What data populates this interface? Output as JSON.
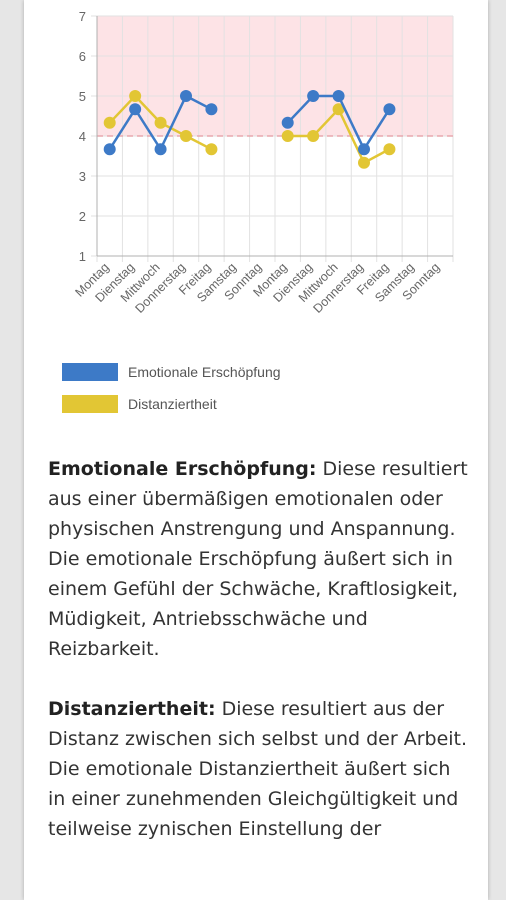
{
  "colors": {
    "series1": "#3d7ac7",
    "series2": "#e2c634",
    "band": "#fde3e6",
    "threshold": "#e8a8ae"
  },
  "chart_data": {
    "type": "line",
    "categories": [
      "Montag",
      "Dienstag",
      "Mittwoch",
      "Donnerstag",
      "Freitag",
      "Samstag",
      "Sonntag",
      "Montag",
      "Dienstag",
      "Mittwoch",
      "Donnerstag",
      "Freitag",
      "Samstag",
      "Sonntag"
    ],
    "series": [
      {
        "name": "Emotionale Erschöpfung",
        "values": [
          3.67,
          4.67,
          3.67,
          5,
          4.67,
          null,
          null,
          4.33,
          5,
          5,
          3.67,
          4.67,
          null,
          null
        ]
      },
      {
        "name": "Distanziertheit",
        "values": [
          4.33,
          5,
          4.33,
          4,
          3.67,
          null,
          null,
          4,
          4,
          4.67,
          3.33,
          3.67,
          null,
          null
        ]
      }
    ],
    "ylim": [
      1,
      7
    ],
    "yticks": [
      "1",
      "2",
      "3",
      "4",
      "5",
      "6",
      "7"
    ],
    "highlight_band": [
      4,
      7
    ],
    "threshold": 4,
    "legend_position": "bottom-left",
    "grid": true
  },
  "legend": {
    "items": [
      "Emotionale Erschöpfung",
      "Distanziertheit"
    ]
  },
  "text": {
    "p1_title": "Emotionale Erschöpfung:",
    "p1_body": " Diese resultiert aus einer übermäßigen emotionalen oder physischen Anstrengung und Anspannung. Die emotionale Erschöpfung äußert sich in einem Gefühl der Schwäche, Kraftlosigkeit, Müdigkeit, Antriebsschwäche und Reizbarkeit.",
    "p2_title": "Distanziertheit:",
    "p2_body": " Diese resultiert aus der Distanz zwischen sich selbst und der Arbeit. Die emotionale Distanziertheit äußert sich in einer zunehmenden Gleichgültigkeit und teilweise zynischen Einstellung der"
  }
}
